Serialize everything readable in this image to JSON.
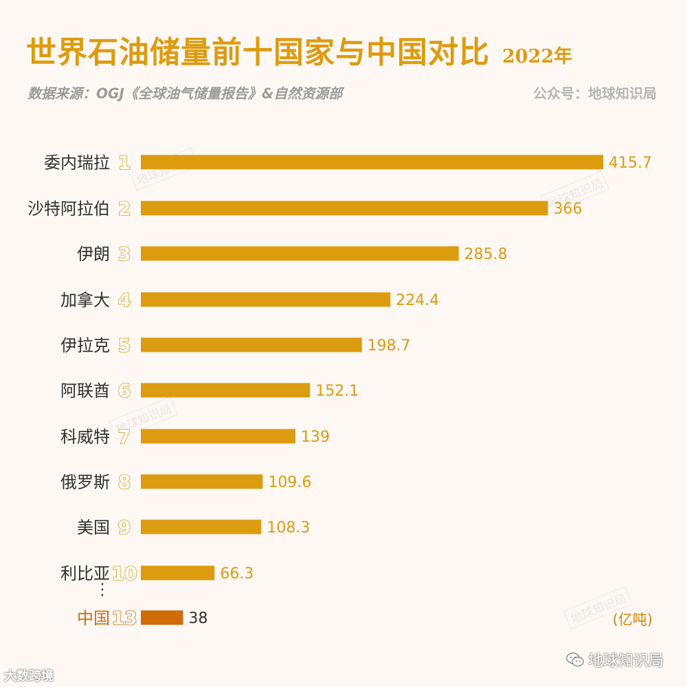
{
  "title": "世界石油储量前十国家与中国对比",
  "year": "2022年",
  "source": "数据来源：OGJ《全球油气储量报告》&自然资源部",
  "account": "公众号：地球知识局",
  "watermark": "地球知识局",
  "footer_left": "大数跨境",
  "footer_right": "地球知识局",
  "colors": {
    "bar": "#dd9b10",
    "highlight_bar": "#d06c08",
    "title": "#dd9b10"
  },
  "chart_data": {
    "type": "bar",
    "orientation": "horizontal",
    "title": "世界石油储量前十国家与中国对比",
    "unit": "(亿吨)",
    "categories": [
      "委内瑞拉",
      "沙特阿拉伯",
      "伊朗",
      "加拿大",
      "伊拉克",
      "阿联酋",
      "科威特",
      "俄罗斯",
      "美国",
      "利比亚",
      "中国"
    ],
    "ranks": [
      "1",
      "2",
      "3",
      "4",
      "5",
      "6",
      "7",
      "8",
      "9",
      "10",
      "13"
    ],
    "values": [
      415.7,
      366,
      285.8,
      224.4,
      198.7,
      152.1,
      139,
      109.6,
      108.3,
      66.3,
      38
    ],
    "value_labels": [
      "415.7",
      "366",
      "285.8",
      "224.4",
      "198.7",
      "152.1",
      "139",
      "109.6",
      "108.3",
      "66.3",
      "38"
    ],
    "highlight": [
      "中国"
    ],
    "xlim": [
      0,
      415.7
    ]
  }
}
